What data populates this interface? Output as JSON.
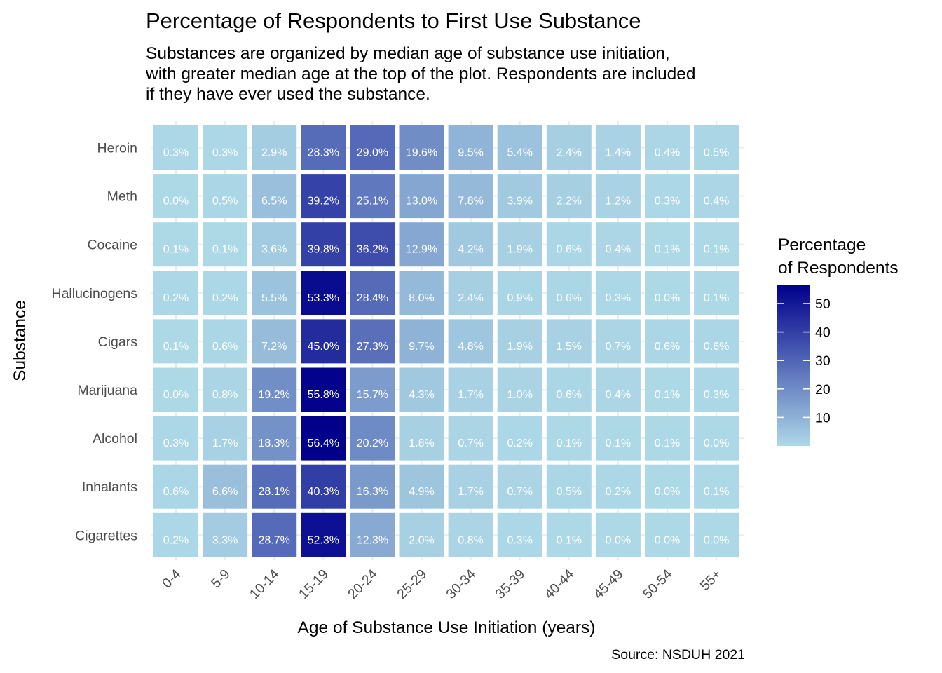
{
  "chart_data": {
    "type": "heatmap",
    "title": "Percentage of Respondents to First Use Substance",
    "subtitle": [
      "Substances are organized by median age of substance use initiation,",
      "with greater median age at the top of the plot. Respondents are included",
      "if they have ever used the substance."
    ],
    "xlabel": "Age of Substance Use Initiation (years)",
    "ylabel": "Substance",
    "caption": "Source: NSDUH 2021",
    "x_categories": [
      "0-4",
      "5-9",
      "10-14",
      "15-19",
      "20-24",
      "25-29",
      "30-34",
      "35-39",
      "40-44",
      "45-49",
      "50-54",
      "55+"
    ],
    "y_categories": [
      "Heroin",
      "Meth",
      "Cocaine",
      "Hallucinogens",
      "Cigars",
      "Marijuana",
      "Alcohol",
      "Inhalants",
      "Cigarettes"
    ],
    "values": [
      [
        0.3,
        0.3,
        2.9,
        28.3,
        29.0,
        19.6,
        9.5,
        5.4,
        2.4,
        1.4,
        0.4,
        0.5
      ],
      [
        0.0,
        0.5,
        6.5,
        39.2,
        25.1,
        13.0,
        7.8,
        3.9,
        2.2,
        1.2,
        0.3,
        0.4
      ],
      [
        0.1,
        0.1,
        3.6,
        39.8,
        36.2,
        12.9,
        4.2,
        1.9,
        0.6,
        0.4,
        0.1,
        0.1
      ],
      [
        0.2,
        0.2,
        5.5,
        53.3,
        28.4,
        8.0,
        2.4,
        0.9,
        0.6,
        0.3,
        0.0,
        0.1
      ],
      [
        0.1,
        0.6,
        7.2,
        45.0,
        27.3,
        9.7,
        4.8,
        1.9,
        1.5,
        0.7,
        0.6,
        0.6
      ],
      [
        0.0,
        0.8,
        19.2,
        55.8,
        15.7,
        4.3,
        1.7,
        1.0,
        0.6,
        0.4,
        0.1,
        0.3
      ],
      [
        0.3,
        1.7,
        18.3,
        56.4,
        20.2,
        1.8,
        0.7,
        0.2,
        0.1,
        0.1,
        0.1,
        0.0
      ],
      [
        0.6,
        6.6,
        28.1,
        40.3,
        16.3,
        4.9,
        1.7,
        0.7,
        0.5,
        0.2,
        0.0,
        0.1
      ],
      [
        0.2,
        3.3,
        28.7,
        52.3,
        12.3,
        2.0,
        0.8,
        0.3,
        0.1,
        0.0,
        0.0,
        0.0
      ]
    ],
    "value_suffix": "%",
    "legend": {
      "title": [
        "Percentage",
        "of Respondents"
      ],
      "ticks": [
        10,
        20,
        30,
        40,
        50
      ],
      "min": 0,
      "max": 56.4,
      "placement": "right"
    },
    "colors": {
      "low": "#add8e6",
      "high": "#00008b"
    },
    "grid": true
  }
}
